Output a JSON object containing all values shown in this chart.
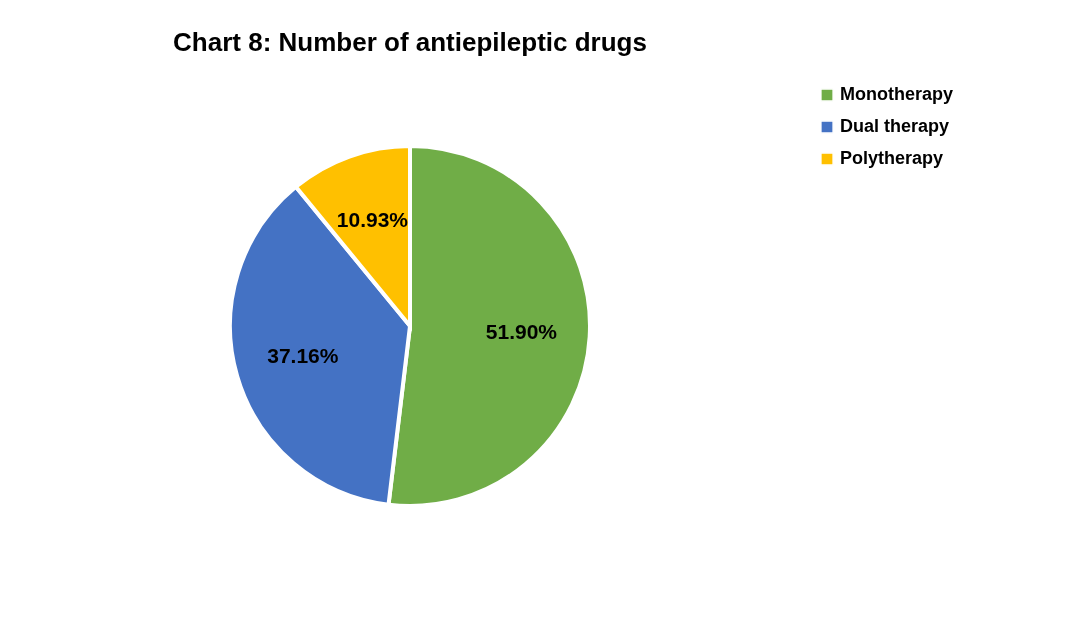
{
  "chart_data": {
    "type": "pie",
    "title": "Chart 8: Number of antiepileptic drugs",
    "categories": [
      "Monotherapy",
      "Dual therapy",
      "Polytherapy"
    ],
    "values": [
      51.9,
      37.16,
      10.93
    ],
    "colors": [
      "#70ad47",
      "#4472c4",
      "#ffc000"
    ],
    "value_labels": [
      "51.90%",
      "37.16%",
      "10.93%"
    ],
    "legend": "right"
  }
}
